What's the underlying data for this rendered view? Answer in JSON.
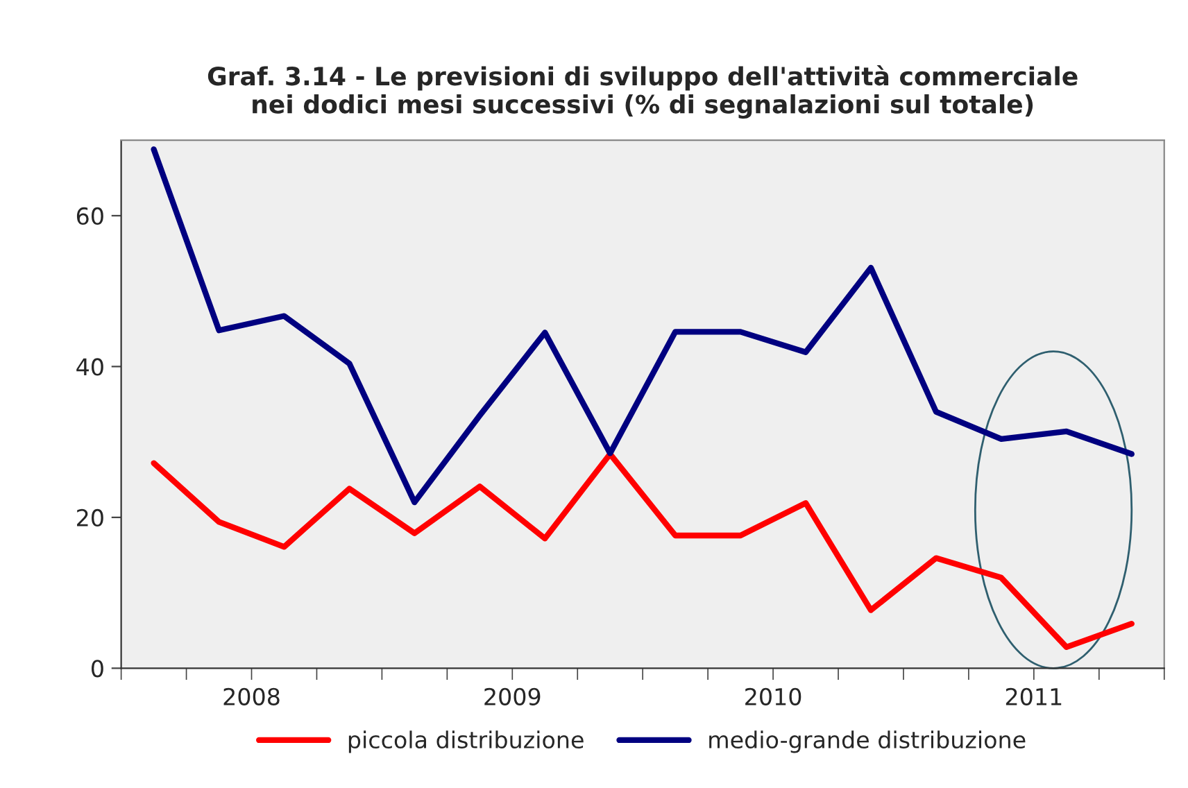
{
  "chart_data": {
    "type": "line",
    "title": "Graf. 3.14 - Le previsioni di sviluppo dell'attività commerciale\nnei dodici mesi successivi (% di segnalazioni sul totale)",
    "x": [
      2008.125,
      2008.375,
      2008.625,
      2008.875,
      2009.125,
      2009.375,
      2009.625,
      2009.875,
      2010.125,
      2010.375,
      2010.625,
      2010.875,
      2011.125,
      2011.375,
      2011.625,
      2011.875
    ],
    "series": [
      {
        "name": "piccola distribuzione",
        "color": "#ff0000",
        "values": [
          27.2,
          19.4,
          16.1,
          23.8,
          17.9,
          24.1,
          17.2,
          28.4,
          17.6,
          17.6,
          21.9,
          7.7,
          14.6,
          12.0,
          2.8,
          5.9
        ]
      },
      {
        "name": "medio-grande distribuzione",
        "color": "#000080",
        "values": [
          68.8,
          44.8,
          46.7,
          40.4,
          22.0,
          33.5,
          44.5,
          28.5,
          44.6,
          44.6,
          41.9,
          53.1,
          34.0,
          30.4,
          31.4,
          28.4
        ]
      }
    ],
    "xlim": [
      2008,
      2012
    ],
    "xticks": [
      {
        "value": 2008.5,
        "label": "2008"
      },
      {
        "value": 2009.5,
        "label": "2009"
      },
      {
        "value": 2010.5,
        "label": "2010"
      },
      {
        "value": 2011.5,
        "label": "2011"
      },
      {
        "value": 2008,
        "label": null
      },
      {
        "value": 2008.25,
        "label": null
      },
      {
        "value": 2008.5,
        "label": null
      },
      {
        "value": 2008.75,
        "label": null
      },
      {
        "value": 2009,
        "label": null
      },
      {
        "value": 2009.25,
        "label": null
      },
      {
        "value": 2009.5,
        "label": null
      },
      {
        "value": 2009.75,
        "label": null
      },
      {
        "value": 2010,
        "label": null
      },
      {
        "value": 2010.25,
        "label": null
      },
      {
        "value": 2010.5,
        "label": null
      },
      {
        "value": 2010.75,
        "label": null
      },
      {
        "value": 2011,
        "label": null
      },
      {
        "value": 2011.25,
        "label": null
      },
      {
        "value": 2011.5,
        "label": null
      },
      {
        "value": 2011.75,
        "label": null
      },
      {
        "value": 2012,
        "label": null
      }
    ],
    "ylim": [
      0,
      70
    ],
    "yticks": [
      0,
      20,
      40,
      60
    ],
    "grid": false,
    "legend": "bottom",
    "marker": "none",
    "line_style": "solid"
  }
}
